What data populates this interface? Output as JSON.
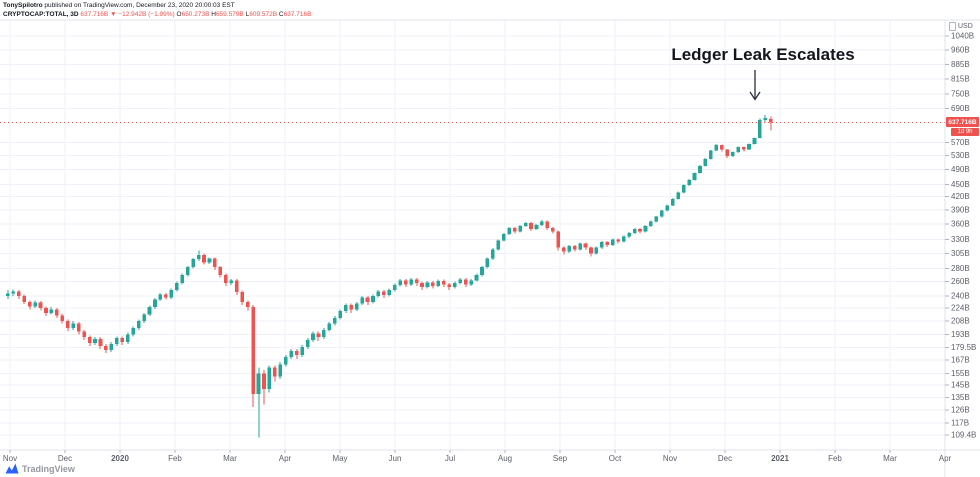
{
  "header": {
    "byline_user": "TonySpilotro",
    "byline_rest": " published on TradingView.com, December 23, 2020 20:00:03 EST",
    "symbol_interval": "CRYPTOCAP:TOTAL, 3D",
    "price": "637.716B",
    "change": "▼ −12.942B (−1.99%)",
    "o_label": "O",
    "o_value": "650.273B",
    "h_label": "H",
    "h_value": "659.579B",
    "l_label": "L",
    "l_value": "609.572B",
    "c_label": "C",
    "c_value": "637.716B"
  },
  "annotation": {
    "text": "Ledger Leak Escalates"
  },
  "price_axis": {
    "unit": "USD",
    "current": {
      "label": "637.716B",
      "countdown": "1d 9h"
    },
    "ticks": [
      [
        "1040B",
        1040
      ],
      [
        "960B",
        960
      ],
      [
        "885B",
        885
      ],
      [
        "815B",
        815
      ],
      [
        "750B",
        750
      ],
      [
        "690B",
        690
      ],
      [
        "570B",
        570
      ],
      [
        "530B",
        530
      ],
      [
        "490B",
        490
      ],
      [
        "450B",
        450
      ],
      [
        "420B",
        420
      ],
      [
        "390B",
        390
      ],
      [
        "360B",
        360
      ],
      [
        "330B",
        330
      ],
      [
        "305B",
        305
      ],
      [
        "280B",
        280
      ],
      [
        "260B",
        260
      ],
      [
        "240B",
        240
      ],
      [
        "224B",
        224
      ],
      [
        "208B",
        208
      ],
      [
        "193B",
        193
      ],
      [
        "179.5B",
        179.5
      ],
      [
        "167B",
        167
      ],
      [
        "155B",
        155
      ],
      [
        "145B",
        145
      ],
      [
        "135B",
        135
      ],
      [
        "126B",
        126
      ],
      [
        "117B",
        117
      ],
      [
        "109.4B",
        109.4
      ]
    ]
  },
  "time_axis": {
    "labels": [
      "Nov",
      "Dec",
      "2020",
      "Feb",
      "Mar",
      "Apr",
      "May",
      "Jun",
      "Jul",
      "Aug",
      "Sep",
      "Oct",
      "Nov",
      "Dec",
      "2021",
      "Feb",
      "Mar",
      "Apr"
    ]
  },
  "footer": {
    "brand": "TradingView"
  },
  "chart_data": {
    "type": "candlestick",
    "title": "CRYPTOCAP:TOTAL total crypto market cap, 3-day bars",
    "symbol": "CRYPTOCAP:TOTAL",
    "interval": "3D",
    "unit": "USD billions",
    "scale": "log",
    "ylim": [
      109.4,
      1040
    ],
    "x_range": [
      "Nov 2019",
      "Apr 2021"
    ],
    "grid": true,
    "last_close": 637.716,
    "annotation_text": "Ledger Leak Escalates",
    "colors": {
      "up": "#26a69a",
      "down": "#ef5350",
      "price_line": "#ef5350",
      "grid": "#eef1f7",
      "border": "#e0e3eb",
      "tick": "#b2b5be",
      "axis_text": "#5d606b",
      "brand_blue": "#2962ff"
    },
    "candles": [
      [
        240,
        248,
        236,
        243
      ],
      [
        243,
        249,
        240,
        246
      ],
      [
        246,
        248,
        236,
        240
      ],
      [
        240,
        242,
        229,
        232
      ],
      [
        232,
        234,
        222,
        226
      ],
      [
        226,
        234,
        224,
        231
      ],
      [
        231,
        233,
        221,
        224
      ],
      [
        224,
        226,
        214,
        218
      ],
      [
        218,
        225,
        216,
        222
      ],
      [
        222,
        224,
        212,
        215
      ],
      [
        215,
        217,
        205,
        208
      ],
      [
        208,
        210,
        197,
        200
      ],
      [
        200,
        208,
        198,
        205
      ],
      [
        205,
        207,
        193,
        196
      ],
      [
        196,
        198,
        187,
        190
      ],
      [
        190,
        192,
        181,
        184
      ],
      [
        184,
        190,
        182,
        188
      ],
      [
        188,
        190,
        178,
        181
      ],
      [
        181,
        183,
        174,
        177
      ],
      [
        177,
        185,
        175,
        183
      ],
      [
        183,
        191,
        181,
        189
      ],
      [
        189,
        191,
        182,
        185
      ],
      [
        185,
        195,
        183,
        193
      ],
      [
        193,
        202,
        191,
        200
      ],
      [
        200,
        210,
        198,
        208
      ],
      [
        208,
        218,
        206,
        216
      ],
      [
        216,
        227,
        214,
        225
      ],
      [
        225,
        237,
        223,
        235
      ],
      [
        235,
        244,
        233,
        242
      ],
      [
        242,
        244,
        235,
        238
      ],
      [
        238,
        250,
        236,
        248
      ],
      [
        248,
        260,
        246,
        258
      ],
      [
        258,
        272,
        256,
        270
      ],
      [
        270,
        284,
        268,
        282
      ],
      [
        282,
        297,
        280,
        295
      ],
      [
        295,
        310,
        292,
        302
      ],
      [
        302,
        305,
        286,
        290
      ],
      [
        290,
        298,
        287,
        296
      ],
      [
        296,
        298,
        278,
        282
      ],
      [
        282,
        284,
        266,
        270
      ],
      [
        270,
        272,
        254,
        258
      ],
      [
        258,
        264,
        255,
        262
      ],
      [
        262,
        264,
        241,
        245
      ],
      [
        245,
        247,
        228,
        232
      ],
      [
        232,
        234,
        221,
        225
      ],
      [
        225,
        228,
        128,
        138
      ],
      [
        138,
        160,
        108,
        155
      ],
      [
        155,
        158,
        130,
        142
      ],
      [
        142,
        162,
        139,
        160
      ],
      [
        160,
        162,
        148,
        152
      ],
      [
        152,
        165,
        150,
        163
      ],
      [
        163,
        172,
        161,
        170
      ],
      [
        170,
        178,
        168,
        176
      ],
      [
        176,
        178,
        168,
        172
      ],
      [
        172,
        182,
        170,
        180
      ],
      [
        180,
        189,
        178,
        187
      ],
      [
        187,
        196,
        185,
        194
      ],
      [
        194,
        196,
        186,
        190
      ],
      [
        190,
        200,
        188,
        198
      ],
      [
        198,
        207,
        196,
        205
      ],
      [
        205,
        214,
        203,
        212
      ],
      [
        212,
        222,
        210,
        220
      ],
      [
        220,
        230,
        218,
        228
      ],
      [
        228,
        230,
        218,
        222
      ],
      [
        222,
        232,
        220,
        230
      ],
      [
        230,
        240,
        228,
        238
      ],
      [
        238,
        240,
        228,
        232
      ],
      [
        232,
        242,
        230,
        240
      ],
      [
        240,
        248,
        238,
        246
      ],
      [
        246,
        248,
        237,
        241
      ],
      [
        241,
        250,
        239,
        248
      ],
      [
        248,
        257,
        246,
        255
      ],
      [
        255,
        264,
        253,
        262
      ],
      [
        262,
        264,
        252,
        256
      ],
      [
        256,
        265,
        254,
        263
      ],
      [
        263,
        265,
        254,
        258
      ],
      [
        258,
        260,
        248,
        252
      ],
      [
        252,
        261,
        250,
        259
      ],
      [
        259,
        261,
        250,
        254
      ],
      [
        254,
        263,
        252,
        261
      ],
      [
        261,
        263,
        252,
        256
      ],
      [
        256,
        258,
        248,
        252
      ],
      [
        252,
        260,
        250,
        258
      ],
      [
        258,
        265,
        256,
        263
      ],
      [
        263,
        265,
        252,
        256
      ],
      [
        256,
        264,
        254,
        262
      ],
      [
        262,
        272,
        260,
        270
      ],
      [
        270,
        284,
        268,
        282
      ],
      [
        282,
        298,
        280,
        296
      ],
      [
        296,
        314,
        294,
        312
      ],
      [
        312,
        330,
        310,
        328
      ],
      [
        328,
        342,
        326,
        340
      ],
      [
        340,
        354,
        338,
        352
      ],
      [
        352,
        354,
        341,
        345
      ],
      [
        345,
        358,
        343,
        356
      ],
      [
        356,
        364,
        354,
        362
      ],
      [
        362,
        364,
        346,
        350
      ],
      [
        350,
        360,
        348,
        358
      ],
      [
        358,
        368,
        356,
        365
      ],
      [
        365,
        367,
        348,
        352
      ],
      [
        352,
        354,
        341,
        345
      ],
      [
        345,
        347,
        310,
        315
      ],
      [
        315,
        317,
        303,
        308
      ],
      [
        308,
        320,
        306,
        318
      ],
      [
        318,
        320,
        308,
        312
      ],
      [
        312,
        324,
        310,
        322
      ],
      [
        322,
        324,
        311,
        315
      ],
      [
        315,
        317,
        300,
        305
      ],
      [
        305,
        317,
        303,
        315
      ],
      [
        315,
        327,
        313,
        325
      ],
      [
        325,
        327,
        316,
        320
      ],
      [
        320,
        332,
        318,
        330
      ],
      [
        330,
        332,
        322,
        326
      ],
      [
        326,
        337,
        324,
        335
      ],
      [
        335,
        344,
        333,
        342
      ],
      [
        342,
        352,
        340,
        350
      ],
      [
        350,
        352,
        341,
        345
      ],
      [
        345,
        358,
        343,
        356
      ],
      [
        356,
        367,
        354,
        365
      ],
      [
        365,
        377,
        363,
        375
      ],
      [
        375,
        390,
        373,
        388
      ],
      [
        388,
        402,
        386,
        400
      ],
      [
        400,
        417,
        398,
        415
      ],
      [
        415,
        432,
        413,
        430
      ],
      [
        430,
        450,
        428,
        448
      ],
      [
        448,
        464,
        446,
        462
      ],
      [
        462,
        482,
        460,
        480
      ],
      [
        480,
        502,
        478,
        500
      ],
      [
        500,
        522,
        498,
        520
      ],
      [
        520,
        547,
        518,
        545
      ],
      [
        545,
        565,
        543,
        562
      ],
      [
        562,
        564,
        542,
        548
      ],
      [
        548,
        550,
        522,
        528
      ],
      [
        528,
        542,
        526,
        540
      ],
      [
        540,
        558,
        538,
        556
      ],
      [
        556,
        558,
        542,
        548
      ],
      [
        548,
        567,
        546,
        565
      ],
      [
        565,
        587,
        563,
        585
      ],
      [
        585,
        652,
        583,
        648
      ],
      [
        648,
        666,
        640,
        655
      ],
      [
        650.273,
        659.579,
        609.572,
        637.716
      ]
    ]
  }
}
